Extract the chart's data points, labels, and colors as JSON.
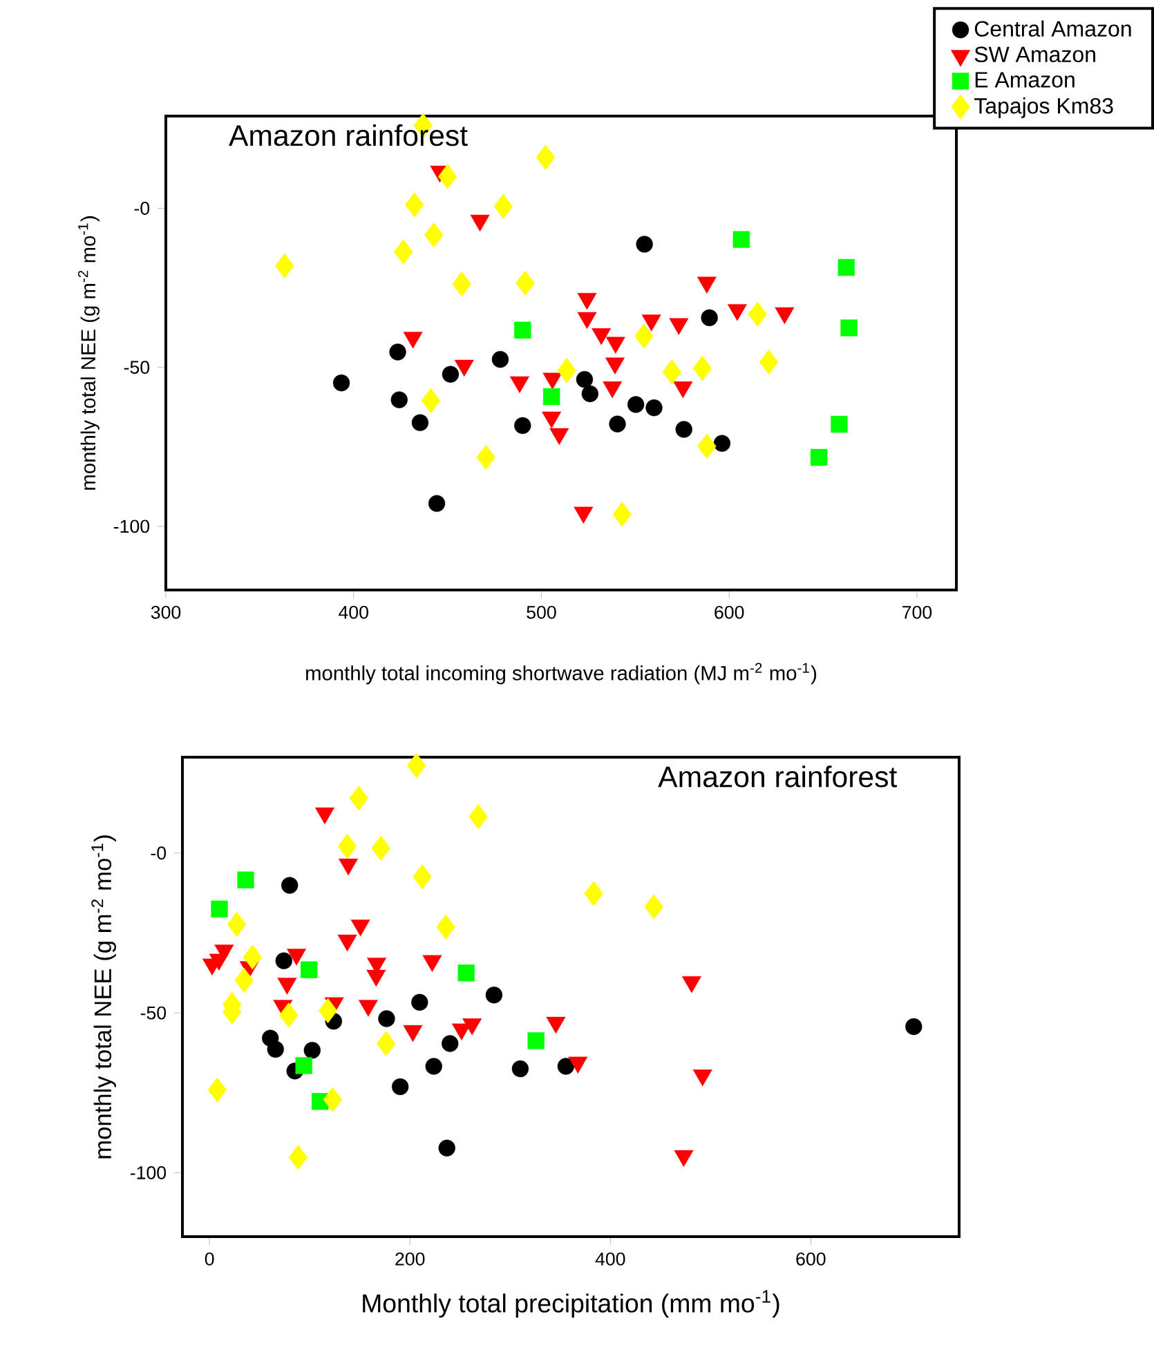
{
  "chart_data": [
    {
      "type": "scatter",
      "title": "Amazon rainforest",
      "xlabel": "monthly total incoming shortwave  radiation (MJ m$^{-2}$ mo$^{-1}$)",
      "ylabel": "monthly total NEE (g m$^{-2}$ mo$^{-1}$)",
      "xlim": [
        300,
        721
      ],
      "ylim": [
        -120,
        29
      ],
      "xticks": [
        300,
        400,
        500,
        600,
        700
      ],
      "yticks": [
        {
          "value": 0,
          "label": "-0"
        },
        {
          "value": -50,
          "label": "-50"
        },
        {
          "value": -100,
          "label": "-100"
        }
      ],
      "legend": "top right",
      "series": [
        {
          "name": "Central Amazon",
          "color": "#000000",
          "marker": "circle",
          "x": [
            554.9,
            589.5,
            423.5,
            393.5,
            451.6,
            478.1,
            523.0,
            525.9,
            550.3,
            560.0,
            424.3,
            435.4,
            490.0,
            540.5,
            575.9,
            596.2,
            444.3
          ],
          "values": [
            -11.3,
            -34.4,
            -45.2,
            -54.9,
            -52.2,
            -47.5,
            -53.8,
            -58.3,
            -61.7,
            -62.7,
            -60.2,
            -67.4,
            -68.3,
            -67.8,
            -69.5,
            -73.9,
            -92.8
          ]
        },
        {
          "name": "SW Amazon",
          "color": "#ff0000",
          "marker": "triangle",
          "x": [
            445.9,
            467.3,
            431.6,
            458.9,
            488.4,
            492.4,
            505.9,
            505.4,
            509.5,
            524.3,
            524.3,
            531.9,
            539.5,
            539.2,
            537.8,
            558.6,
            573.2,
            575.4,
            588.1,
            604.3,
            629.5,
            522.4
          ],
          "values": [
            11.6,
            -3.8,
            -40.6,
            -49.4,
            -54.6,
            null,
            -53.5,
            -65.7,
            -70.9,
            -28.4,
            -34.4,
            -39.5,
            -42.2,
            -48.7,
            -56.2,
            -35.2,
            -36.3,
            -56.2,
            -23.3,
            -31.9,
            -32.9,
            -95.6
          ]
        },
        {
          "name": "E Amazon",
          "color": "#00ff00",
          "marker": "square",
          "x": [
            490.0,
            505.4,
            606.5,
            662.4,
            663.8,
            658.6,
            647.8
          ],
          "values": [
            -38.3,
            -59.2,
            -9.8,
            -18.6,
            -37.6,
            -67.9,
            -78.3
          ]
        },
        {
          "name": "Tapajos Km83",
          "color": "#ffff00",
          "marker": "diamond",
          "x": [
            437.0,
            502.2,
            450.0,
            432.4,
            479.7,
            442.7,
            426.5,
            363.2,
            457.6,
            491.4,
            554.6,
            513.5,
            569.5,
            585.7,
            621.1,
            615.1,
            441.1,
            470.5,
            588.1,
            543.0
          ],
          "values": [
            26.0,
            16.0,
            10.0,
            1.1,
            0.6,
            -8.4,
            -13.7,
            -18.1,
            -23.8,
            -23.5,
            -40.2,
            -51.0,
            -51.4,
            -50.3,
            -48.3,
            -33.3,
            -60.5,
            -78.3,
            -74.8,
            -96.2
          ]
        }
      ]
    },
    {
      "type": "scatter",
      "title": "Amazon rainforest",
      "xlabel": "Monthly total precipitation (mm mo$^{-1}$)",
      "ylabel": "monthly total NEE (g m$^{-2}$ mo$^{-1}$)",
      "xlim": [
        -27,
        748
      ],
      "ylim": [
        -120,
        30
      ],
      "xticks": [
        0,
        200,
        400,
        600
      ],
      "yticks": [
        {
          "value": 0,
          "label": "-0"
        },
        {
          "value": -50,
          "label": "-50"
        },
        {
          "value": -100,
          "label": "-100"
        }
      ],
      "series": [
        {
          "color": "#000000",
          "marker": "circle",
          "x": [
            80.0,
            74.2,
            209.7,
            283.9,
            123.9,
            176.7,
            60.7,
            65.9,
            102.5,
            85.2,
            240.0,
            223.8,
            310.1,
            355.6,
            190.3,
            236.9,
            702.7
          ],
          "values": [
            -10.1,
            -33.7,
            -46.7,
            -44.4,
            -52.6,
            -51.8,
            -57.9,
            -61.4,
            -61.7,
            -68.2,
            -59.6,
            -66.7,
            -67.5,
            -66.7,
            -73.1,
            -92.3,
            -54.3
          ]
        },
        {
          "color": "#ff0000",
          "marker": "triangle",
          "x": [
            115.0,
            138.5,
            150.6,
            137.5,
            14.6,
            2.6,
            9.4,
            39.7,
            86.8,
            77.4,
            166.8,
            166.3,
            222.2,
            73.2,
            124.4,
            158.4,
            202.9,
            251.5,
            262.0,
            345.6,
            367.6,
            481.1,
            492.0,
            473.2
          ],
          "values": [
            12.5,
            -3.5,
            -22.6,
            -27.3,
            -30.4,
            -34.8,
            -33.3,
            -35.6,
            -31.7,
            -40.8,
            -34.5,
            -38.3,
            -33.7,
            -47.7,
            -46.9,
            -47.7,
            -55.6,
            -55.1,
            -53.5,
            -53.0,
            -65.5,
            -40.3,
            -69.5,
            -94.7
          ]
        },
        {
          "color": "#00ff00",
          "marker": "square",
          "x": [
            36.1,
            9.9,
            99.3,
            256.2,
            325.8,
            94.1,
            110.3
          ],
          "values": [
            -8.4,
            -17.5,
            -36.5,
            -37.5,
            -58.7,
            -66.5,
            -77.7
          ]
        },
        {
          "color": "#ffff00",
          "marker": "diamond",
          "x": [
            206.5,
            149.0,
            268.2,
            137.5,
            171.0,
            212.3,
            383.3,
            443.4,
            27.2,
            235.8,
            42.9,
            34.5,
            22.5,
            22.5,
            79.0,
            118.2,
            176.2,
            7.8,
            122.9,
            88.4
          ],
          "values": [
            27.4,
            17.2,
            11.4,
            2.1,
            1.5,
            -7.4,
            -12.7,
            -16.8,
            -22.3,
            -23.1,
            -32.5,
            -39.8,
            -47.4,
            -49.7,
            -50.7,
            -49.3,
            -59.6,
            -74.1,
            -77.1,
            -95.2
          ]
        }
      ]
    }
  ]
}
